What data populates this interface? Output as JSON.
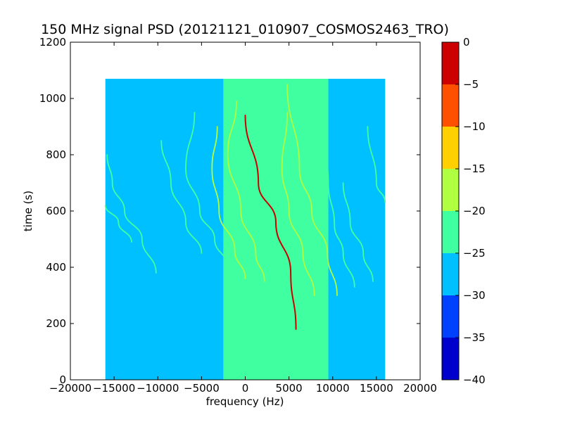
{
  "chart_data": {
    "type": "heatmap",
    "title": "150 MHz signal PSD (20121121_010907_COSMOS2463_TRO)",
    "xlabel": "frequency (Hz)",
    "ylabel": "time (s)",
    "xlim": [
      -20000,
      20000
    ],
    "ylim": [
      0,
      1200
    ],
    "xticks": [
      -20000,
      -15000,
      -10000,
      -5000,
      0,
      5000,
      10000,
      15000,
      20000
    ],
    "xtick_labels": [
      "−20000",
      "−15000",
      "−10000",
      "−5000",
      "0",
      "5000",
      "10000",
      "15000",
      "20000"
    ],
    "yticks": [
      0,
      200,
      400,
      600,
      800,
      1000,
      1200
    ],
    "ytick_labels": [
      "0",
      "200",
      "400",
      "600",
      "800",
      "1000",
      "1200"
    ],
    "data_extent": {
      "x": [
        -16000,
        16000
      ],
      "y": [
        0,
        1070
      ]
    },
    "colorbar": {
      "range": [
        -40,
        0
      ],
      "ticks": [
        0,
        -5,
        -10,
        -15,
        -20,
        -25,
        -30,
        -35,
        -40
      ],
      "tick_labels": [
        "0",
        "−5",
        "−10",
        "−15",
        "−20",
        "−25",
        "−30",
        "−35",
        "−40"
      ],
      "levels": [
        {
          "from": -40,
          "to": -35,
          "color": "#0000cd"
        },
        {
          "from": -35,
          "to": -30,
          "color": "#0040ff"
        },
        {
          "from": -30,
          "to": -25,
          "color": "#00c0ff"
        },
        {
          "from": -25,
          "to": -20,
          "color": "#40ffa0"
        },
        {
          "from": -20,
          "to": -15,
          "color": "#b0ff40"
        },
        {
          "from": -15,
          "to": -10,
          "color": "#ffd000"
        },
        {
          "from": -10,
          "to": -5,
          "color": "#ff5000"
        },
        {
          "from": -5,
          "to": 0,
          "color": "#cd0000"
        }
      ]
    },
    "background_regions": [
      {
        "x": [
          -16000,
          -2500
        ],
        "level": -27.5
      },
      {
        "x": [
          -2500,
          9500
        ],
        "level": -22.5
      },
      {
        "x": [
          9500,
          16000
        ],
        "level": -25.0
      }
    ],
    "traces": [
      {
        "points": [
          [
            5800,
            180
          ],
          [
            5200,
            380
          ],
          [
            3500,
            560
          ],
          [
            1500,
            700
          ],
          [
            0,
            940
          ]
        ],
        "level": -2.5
      },
      {
        "points": [
          [
            7900,
            300
          ],
          [
            6600,
            450
          ],
          [
            5000,
            600
          ],
          [
            4200,
            750
          ],
          [
            4800,
            950
          ]
        ],
        "level": -17.5
      },
      {
        "points": [
          [
            2200,
            350
          ],
          [
            1200,
            450
          ],
          [
            -500,
            600
          ],
          [
            -2000,
            800
          ],
          [
            -1000,
            990
          ]
        ],
        "level": -17.5
      },
      {
        "points": [
          [
            10500,
            300
          ],
          [
            9400,
            450
          ],
          [
            7600,
            600
          ],
          [
            6200,
            750
          ],
          [
            4800,
            1050
          ]
        ],
        "level": -17.5
      },
      {
        "points": [
          [
            0,
            360
          ],
          [
            -1200,
            460
          ],
          [
            -3000,
            600
          ],
          [
            -3800,
            750
          ],
          [
            -3200,
            900
          ]
        ],
        "level": -17.5
      },
      {
        "points": [
          [
            12500,
            330
          ],
          [
            11200,
            450
          ],
          [
            10200,
            550
          ],
          [
            9500,
            700
          ],
          [
            8300,
            950
          ]
        ],
        "level": -22.5
      },
      {
        "points": [
          [
            -2000,
            400
          ],
          [
            -3500,
            500
          ],
          [
            -5200,
            600
          ],
          [
            -6800,
            750
          ],
          [
            -5800,
            950
          ]
        ],
        "level": -22.5
      },
      {
        "points": [
          [
            14600,
            350
          ],
          [
            13500,
            450
          ],
          [
            12000,
            560
          ],
          [
            11200,
            700
          ]
        ],
        "level": -22.5
      },
      {
        "points": [
          [
            -10200,
            380
          ],
          [
            -11800,
            500
          ],
          [
            -13800,
            600
          ],
          [
            -15200,
            700
          ],
          [
            -15800,
            800
          ]
        ],
        "level": -22.5
      },
      {
        "points": [
          [
            -5000,
            450
          ],
          [
            -6800,
            560
          ],
          [
            -8500,
            700
          ],
          [
            -9600,
            850
          ]
        ],
        "level": -22.5
      },
      {
        "points": [
          [
            -13000,
            490
          ],
          [
            -14500,
            560
          ],
          [
            -16000,
            620
          ]
        ],
        "level": -22.5
      },
      {
        "points": [
          [
            16000,
            630
          ],
          [
            15000,
            700
          ],
          [
            14000,
            900
          ]
        ],
        "level": -22.5
      }
    ]
  }
}
